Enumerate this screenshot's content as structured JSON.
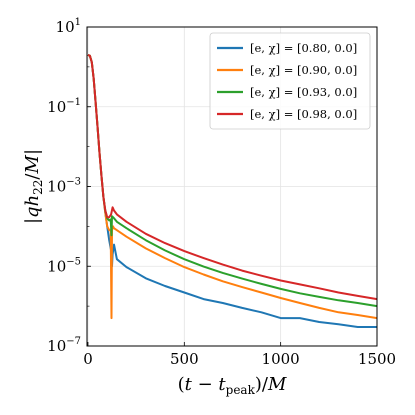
{
  "chart_data": {
    "type": "line",
    "xlabel": "(t − t_peak)/M",
    "ylabel": "|q h22/M|",
    "xlim": [
      -5,
      1500
    ],
    "ylim": [
      1e-07,
      10
    ],
    "yscale": "log",
    "grid": true,
    "legend_position": "top-right",
    "xticks": [
      {
        "value": 0,
        "label": "0"
      },
      {
        "value": 500,
        "label": "500"
      },
      {
        "value": 1000,
        "label": "1000"
      },
      {
        "value": 1500,
        "label": "1500"
      }
    ],
    "yticks": [
      {
        "value": 1e-07,
        "base": "10",
        "exp": "−7"
      },
      {
        "value": 1e-05,
        "base": "10",
        "exp": "−5"
      },
      {
        "value": 0.001,
        "base": "10",
        "exp": "−3"
      },
      {
        "value": 0.1,
        "base": "10",
        "exp": "−1"
      },
      {
        "value": 10,
        "base": "10",
        "exp": "1"
      }
    ],
    "series": [
      {
        "name": "[e, χ] = [0.80, 0.0]",
        "color": "#1f77b4",
        "x": [
          0,
          10,
          20,
          30,
          40,
          50,
          60,
          70,
          80,
          90,
          100,
          110,
          120,
          125,
          128,
          135,
          150,
          200,
          300,
          400,
          500,
          600,
          700,
          800,
          900,
          1000,
          1100,
          1200,
          1300,
          1400,
          1500
        ],
        "y": [
          2.0,
          1.9,
          1.3,
          0.5,
          0.12,
          0.03,
          0.007,
          0.0018,
          0.00055,
          0.00022,
          0.0001,
          4.5e-05,
          2.5e-05,
          1e-05,
          2e-05,
          3.5e-05,
          1.5e-05,
          9.5e-06,
          5e-06,
          3.2e-06,
          2.2e-06,
          1.5e-06,
          1.2e-06,
          9e-07,
          7e-07,
          5e-07,
          5e-07,
          4e-07,
          3.5e-07,
          3e-07,
          3e-07
        ]
      },
      {
        "name": "[e, χ] = [0.90, 0.0]",
        "color": "#ff7f0e",
        "x": [
          0,
          10,
          20,
          30,
          40,
          50,
          60,
          70,
          80,
          90,
          100,
          110,
          118,
          122,
          125,
          130,
          135,
          150,
          200,
          300,
          400,
          500,
          600,
          700,
          800,
          900,
          1000,
          1100,
          1200,
          1300,
          1400,
          1500
        ],
        "y": [
          2.0,
          1.9,
          1.3,
          0.5,
          0.12,
          0.03,
          0.007,
          0.0018,
          0.00055,
          0.00022,
          0.0001,
          8e-05,
          8e-05,
          5e-07,
          8e-05,
          0.0001,
          9e-05,
          8e-05,
          5.5e-05,
          2.8e-05,
          1.6e-05,
          9.5e-06,
          6.2e-06,
          4.2e-06,
          3e-06,
          2.2e-06,
          1.6e-06,
          1.2e-06,
          9e-07,
          7e-07,
          6e-07,
          5e-07
        ]
      },
      {
        "name": "[e, χ] = [0.93, 0.0]",
        "color": "#2ca02c",
        "x": [
          0,
          10,
          20,
          30,
          40,
          50,
          60,
          70,
          80,
          90,
          100,
          110,
          118,
          122,
          125,
          135,
          150,
          200,
          300,
          400,
          500,
          600,
          700,
          800,
          900,
          1000,
          1100,
          1200,
          1300,
          1400,
          1500
        ],
        "y": [
          2.0,
          1.9,
          1.3,
          0.5,
          0.12,
          0.03,
          0.007,
          0.0018,
          0.00055,
          0.00025,
          0.00016,
          0.00014,
          0.00015,
          6e-05,
          0.00018,
          0.00016,
          0.00013,
          9e-05,
          4.5e-05,
          2.5e-05,
          1.5e-05,
          9.8e-06,
          6.8e-06,
          4.9e-06,
          3.6e-06,
          2.7e-06,
          2.1e-06,
          1.7e-06,
          1.4e-06,
          1.2e-06,
          1e-06
        ]
      },
      {
        "name": "[e, χ] = [0.98, 0.0]",
        "color": "#d62728",
        "x": [
          0,
          10,
          20,
          30,
          40,
          50,
          60,
          70,
          80,
          90,
          100,
          110,
          120,
          128,
          135,
          150,
          200,
          300,
          400,
          500,
          600,
          700,
          800,
          900,
          1000,
          1100,
          1200,
          1300,
          1400,
          1500
        ],
        "y": [
          2.0,
          1.9,
          1.3,
          0.5,
          0.12,
          0.03,
          0.007,
          0.0018,
          0.00055,
          0.00025,
          0.00017,
          0.00017,
          0.0002,
          0.0003,
          0.00025,
          0.0002,
          0.00013,
          6.5e-05,
          3.8e-05,
          2.4e-05,
          1.6e-05,
          1.1e-05,
          7.8e-06,
          5.8e-06,
          4.4e-06,
          3.5e-06,
          2.8e-06,
          2.2e-06,
          1.8e-06,
          1.5e-06
        ]
      }
    ]
  }
}
